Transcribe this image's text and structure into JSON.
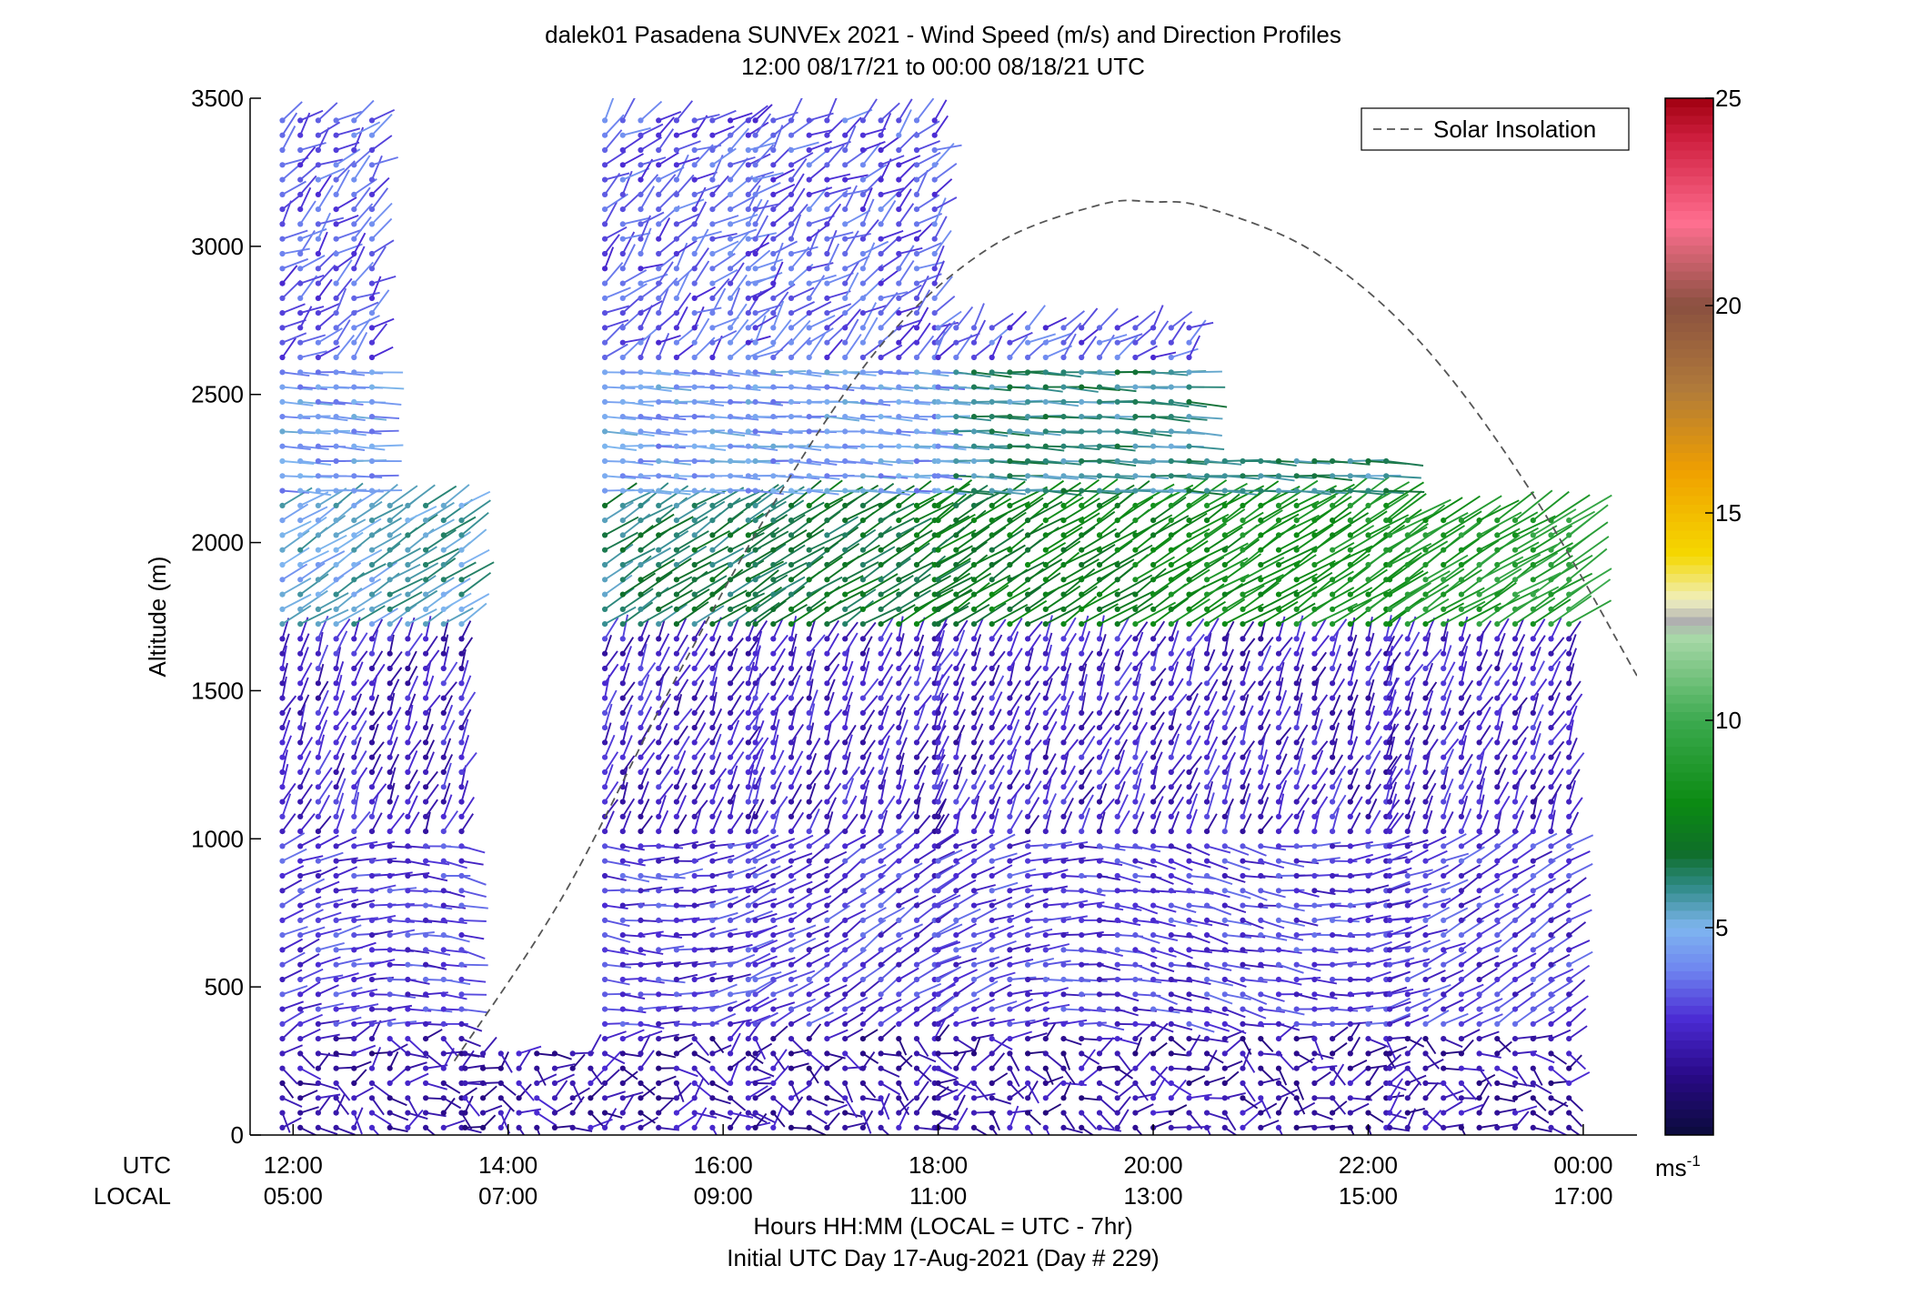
{
  "chart_data": {
    "type": "wind_barb_profile",
    "title": "dalek01 Pasadena SUNVEx 2021 - Wind Speed (m/s) and Direction Profiles",
    "subtitle": "12:00 08/17/21 to 00:00 08/18/21  UTC",
    "ylabel": "Altitude (m)",
    "xlabel": "Hours HH:MM  (LOCAL = UTC - 7hr)",
    "xlabel2": "Initial UTC Day 17-Aug-2021 (Day # 229)",
    "utc_row_label": "UTC",
    "local_row_label": "LOCAL",
    "xlim_utc_hours": [
      11.6,
      24.5
    ],
    "ylim": [
      0,
      3500
    ],
    "yticks": [
      {
        "value": 0,
        "label": "0"
      },
      {
        "value": 500,
        "label": "500"
      },
      {
        "value": 1000,
        "label": "1000"
      },
      {
        "value": 1500,
        "label": "1500"
      },
      {
        "value": 2000,
        "label": "2000"
      },
      {
        "value": 2500,
        "label": "2500"
      },
      {
        "value": 3000,
        "label": "3000"
      },
      {
        "value": 3500,
        "label": "3500"
      }
    ],
    "xticks": [
      {
        "utc_hour": 12,
        "utc": "12:00",
        "local": "05:00"
      },
      {
        "utc_hour": 14,
        "utc": "14:00",
        "local": "07:00"
      },
      {
        "utc_hour": 16,
        "utc": "16:00",
        "local": "09:00"
      },
      {
        "utc_hour": 18,
        "utc": "18:00",
        "local": "11:00"
      },
      {
        "utc_hour": 20,
        "utc": "20:00",
        "local": "13:00"
      },
      {
        "utc_hour": 22,
        "utc": "22:00",
        "local": "15:00"
      },
      {
        "utc_hour": 24,
        "utc": "00:00",
        "local": "17:00"
      }
    ],
    "legend": {
      "label": "Solar Insolation",
      "placement": "top-right",
      "line_color": "#555555",
      "line_style": "dashed"
    },
    "solar_insolation_curve": [
      {
        "utc_hour": 13.5,
        "altitude": 250
      },
      {
        "utc_hour": 14.5,
        "altitude": 800
      },
      {
        "utc_hour": 15.5,
        "altitude": 1500
      },
      {
        "utc_hour": 16.5,
        "altitude": 2150
      },
      {
        "utc_hour": 17.5,
        "altitude": 2680
      },
      {
        "utc_hour": 18.5,
        "altitude": 3000
      },
      {
        "utc_hour": 19.5,
        "altitude": 3140
      },
      {
        "utc_hour": 20.0,
        "altitude": 3150
      },
      {
        "utc_hour": 20.5,
        "altitude": 3130
      },
      {
        "utc_hour": 21.5,
        "altitude": 2980
      },
      {
        "utc_hour": 22.5,
        "altitude": 2670
      },
      {
        "utc_hour": 23.5,
        "altitude": 2180
      },
      {
        "utc_hour": 24.5,
        "altitude": 1550
      }
    ],
    "colorbar": {
      "unit_label": "ms",
      "unit_exponent": "-1",
      "range": [
        0,
        25
      ],
      "ticks": [
        {
          "value": 5,
          "label": "5"
        },
        {
          "value": 10,
          "label": "10"
        },
        {
          "value": 15,
          "label": "15"
        },
        {
          "value": 20,
          "label": "20"
        },
        {
          "value": 25,
          "label": "25"
        }
      ],
      "stops": [
        {
          "value": 0,
          "color": "#0b0b3a"
        },
        {
          "value": 1.5,
          "color": "#2a0a8a"
        },
        {
          "value": 2.8,
          "color": "#4b2bd4"
        },
        {
          "value": 4,
          "color": "#6f86f0"
        },
        {
          "value": 5,
          "color": "#7fb6f0"
        },
        {
          "value": 6,
          "color": "#2f8a86"
        },
        {
          "value": 6.8,
          "color": "#0f6e2a"
        },
        {
          "value": 8,
          "color": "#0b8a12"
        },
        {
          "value": 10,
          "color": "#3caa4f"
        },
        {
          "value": 12,
          "color": "#a8d8a8"
        },
        {
          "value": 12.4,
          "color": "#b0b0b0"
        },
        {
          "value": 12.9,
          "color": "#f0f0c0"
        },
        {
          "value": 14,
          "color": "#f5d800"
        },
        {
          "value": 16,
          "color": "#f0a000"
        },
        {
          "value": 18,
          "color": "#b07a3a"
        },
        {
          "value": 20,
          "color": "#8a5040"
        },
        {
          "value": 22,
          "color": "#ff6f90"
        },
        {
          "value": 24,
          "color": "#d02040"
        },
        {
          "value": 25,
          "color": "#a00010"
        }
      ]
    },
    "profiles": {
      "time_step_hours": 0.1667,
      "altitude_step_m": 50,
      "segments": [
        {
          "utc_start": 11.9,
          "utc_end": 12.9,
          "alt_min": 0,
          "alt_max": 3450
        },
        {
          "utc_start": 12.9,
          "utc_end": 13.6,
          "alt_min": 0,
          "alt_max": 2150
        },
        {
          "utc_start": 13.6,
          "utc_end": 14.9,
          "alt_min": 0,
          "alt_max": 300
        },
        {
          "utc_start": 14.9,
          "utc_end": 16.3,
          "alt_min": 0,
          "alt_max": 3450
        },
        {
          "utc_start": 16.3,
          "utc_end": 18.0,
          "alt_min": 0,
          "alt_max": 3450
        },
        {
          "utc_start": 18.0,
          "utc_end": 20.5,
          "alt_min": 0,
          "alt_max": 2750
        },
        {
          "utc_start": 20.5,
          "utc_end": 22.2,
          "alt_min": 0,
          "alt_max": 2300
        },
        {
          "utc_start": 22.2,
          "utc_end": 23.9,
          "alt_min": 0,
          "alt_max": 2100
        }
      ],
      "regimes": [
        {
          "alt_min": 0,
          "alt_max": 350,
          "speed_ms": 2.0,
          "direction_note": "light variable near surface"
        },
        {
          "alt_min": 350,
          "alt_max": 1000,
          "speed_ms": 3.0,
          "direction_note": "westerly to southwesterly"
        },
        {
          "alt_min": 1000,
          "alt_max": 1700,
          "speed_ms": 2.5,
          "direction_note": "southerly to southwesterly"
        },
        {
          "alt_min": 1700,
          "alt_max": 2150,
          "speed_ms": 6.5,
          "direction_note": "southwesterly"
        },
        {
          "alt_min": 2150,
          "alt_max": 2600,
          "speed_ms": 4.5,
          "direction_note": "westerly"
        },
        {
          "alt_min": 2600,
          "alt_max": 3500,
          "speed_ms": 3.5,
          "direction_note": "southerly to westerly"
        }
      ]
    }
  }
}
